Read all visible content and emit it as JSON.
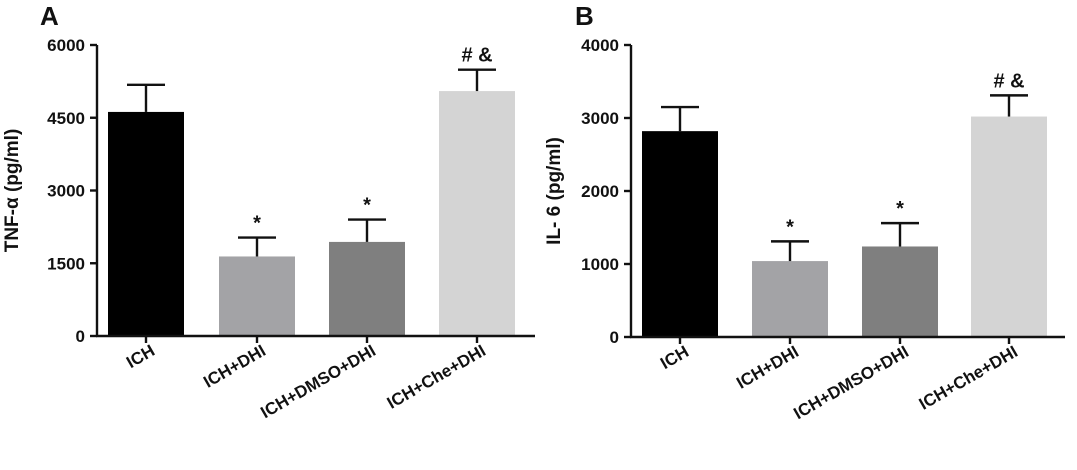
{
  "chart_data": [
    {
      "type": "bar",
      "panel": "A",
      "ylabel": "TNF-α (pg/ml)",
      "ylim": [
        0,
        6000
      ],
      "yticks": [
        0,
        1500,
        3000,
        4500,
        6000
      ],
      "categories": [
        "ICH",
        "ICH+DHI",
        "ICH+DMSO+DHI",
        "ICH+Che+DHI"
      ],
      "values": [
        4620,
        1640,
        1940,
        5050
      ],
      "errors": [
        560,
        390,
        460,
        440
      ],
      "annotations": [
        "",
        "*",
        "*",
        "# &"
      ],
      "colors": [
        "#000000",
        "#a3a3a6",
        "#7f7f7f",
        "#d4d4d4"
      ],
      "grid": false
    },
    {
      "type": "bar",
      "panel": "B",
      "ylabel": "IL- 6 (pg/ml)",
      "ylim": [
        0,
        4000
      ],
      "yticks": [
        0,
        1000,
        2000,
        3000,
        4000
      ],
      "categories": [
        "ICH",
        "ICH+DHI",
        "ICH+DMSO+DHI",
        "ICH+Che+DHI"
      ],
      "values": [
        2820,
        1040,
        1240,
        3020
      ],
      "errors": [
        330,
        270,
        320,
        290
      ],
      "annotations": [
        "",
        "*",
        "*",
        "# &"
      ],
      "colors": [
        "#000000",
        "#a3a3a6",
        "#7f7f7f",
        "#d4d4d4"
      ],
      "grid": false
    }
  ]
}
